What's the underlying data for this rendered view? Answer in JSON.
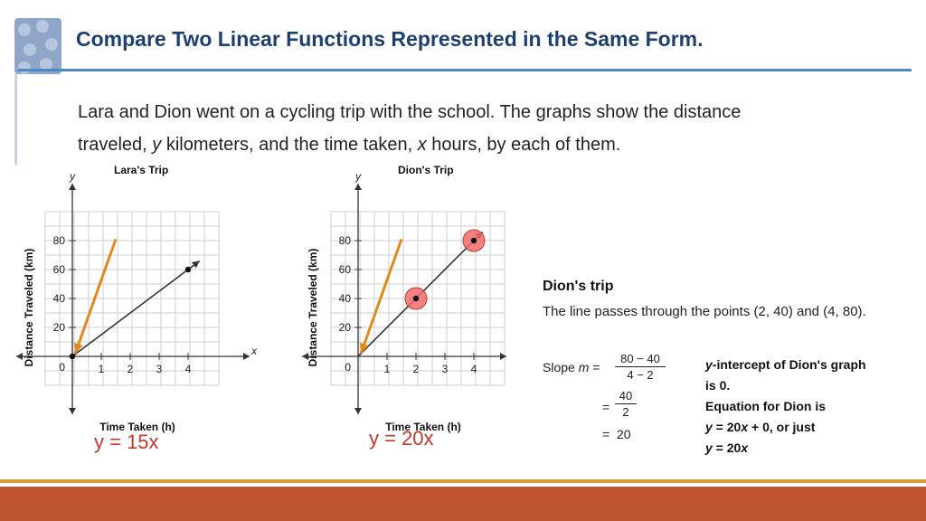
{
  "header": {
    "title": "Compare Two Linear Functions Represented in the Same Form."
  },
  "intro": {
    "line1": "Lara and Dion went on a cycling trip with the school. The graphs show the distance",
    "line2_a": "traveled, ",
    "line2_y": "y",
    "line2_b": " kilometers, and the time taken, ",
    "line2_x": "x",
    "line2_c": " hours, by each of them."
  },
  "chart_data": [
    {
      "type": "line",
      "title": "Lara's Trip",
      "xlabel": "Time Taken (h)",
      "ylabel": "Distance Traveled (km)",
      "x_axis_letter": "x",
      "y_axis_letter": "y",
      "x_ticks": [
        1,
        2,
        3,
        4
      ],
      "y_ticks": [
        20,
        40,
        60,
        80
      ],
      "origin_label": "0",
      "xlim": [
        0,
        5
      ],
      "ylim": [
        0,
        100
      ],
      "grid": true,
      "series": [
        {
          "x": [
            0,
            4.4
          ],
          "y": [
            0,
            66
          ],
          "color": "#333333"
        }
      ],
      "points": [
        {
          "x": 0,
          "y": 0
        },
        {
          "x": 4,
          "y": 60
        }
      ],
      "highlight_points": [],
      "arrow_annotation": {
        "from": [
          1.5,
          81
        ],
        "to": [
          0.1,
          2
        ],
        "color": "#e08a1e"
      },
      "equation_label": "y = 15x"
    },
    {
      "type": "line",
      "title": "Dion's Trip",
      "xlabel": "Time Taken (h)",
      "ylabel": "Distance Traveled (km)",
      "y_axis_letter": "y",
      "x_ticks": [
        1,
        2,
        3,
        4
      ],
      "y_ticks": [
        20,
        40,
        60,
        80
      ],
      "origin_label": "0",
      "xlim": [
        0,
        5
      ],
      "ylim": [
        0,
        100
      ],
      "grid": true,
      "series": [
        {
          "x": [
            0,
            4.3
          ],
          "y": [
            0,
            86
          ],
          "color": "#333333"
        }
      ],
      "points": [
        {
          "x": 2,
          "y": 40
        },
        {
          "x": 4,
          "y": 80
        }
      ],
      "highlight_points": [
        {
          "x": 2,
          "y": 40
        },
        {
          "x": 4,
          "y": 80
        }
      ],
      "highlight_color": "#f26b6b",
      "arrow_annotation": {
        "from": [
          1.5,
          81
        ],
        "to": [
          0.1,
          2
        ],
        "color": "#e08a1e"
      },
      "equation_label": "y = 20x"
    }
  ],
  "dion_text": {
    "heading": "Dion's trip",
    "sentence": "The line passes through the points (2, 40) and (4, 80).",
    "slope_label": "Slope ",
    "slope_m": "m",
    "eq": "=",
    "frac1_num": "80 − 40",
    "frac1_den": "4 − 2",
    "frac2_num": "40",
    "frac2_den": "2",
    "result": "20"
  },
  "info": {
    "l1_y": "y",
    "l1_rest": "-intercept of Dion's graph",
    "l2": "is 0.",
    "l3": "Equation for Dion is",
    "l4_y": "y",
    "l4_mid": " = 20",
    "l4_x": "x",
    "l4_rest": " + 0, or just",
    "l5_y": "y",
    "l5_mid": " = 20",
    "l5_x": "x"
  },
  "colors": {
    "title": "#1f3f6e",
    "accent_rule": "#4e88c6",
    "equation_red": "#c0392b",
    "footer": "#bf5530",
    "footer_line": "#d79a3c"
  }
}
